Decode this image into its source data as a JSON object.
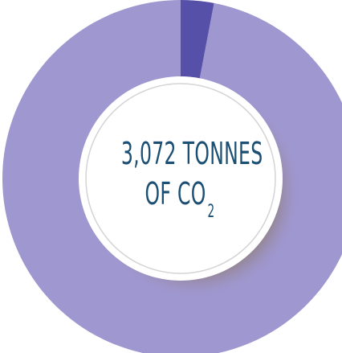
{
  "chart_data": {
    "type": "pie",
    "style": "donut",
    "slices": [
      {
        "value": 97,
        "color": "#9f97d0"
      },
      {
        "value": 3,
        "color": "#5650a8"
      }
    ],
    "center_text": {
      "line1": "3,072 TONNES",
      "line2_prefix": "OF CO",
      "line2_subscript": "2"
    }
  }
}
